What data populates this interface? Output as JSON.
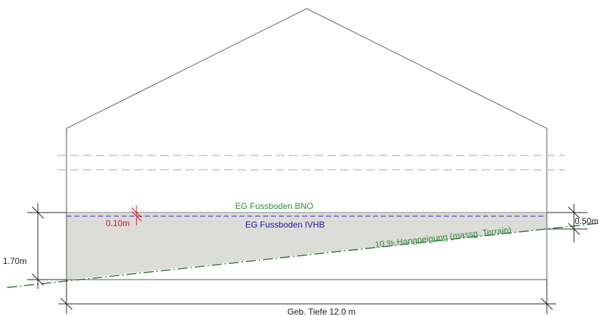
{
  "labels": {
    "floor_bno": "EG Fussboden BNO",
    "floor_ivhb": "EG Fussboden IVHB",
    "slope": "10 % Hangneigung (massg. Terrain)",
    "dim_010": "0.10m",
    "dim_050": "0.50m",
    "dim_170": "1.70m",
    "depth": "Geb. Tiefe 12.0 m"
  },
  "colors": {
    "line": "#555555",
    "dim_line": "#222222",
    "fill": "#dcdcd8",
    "green": "#2e8b3a",
    "blue": "#2222cc",
    "red": "#d01818",
    "dashed_gray": "#b8b8b8"
  }
}
